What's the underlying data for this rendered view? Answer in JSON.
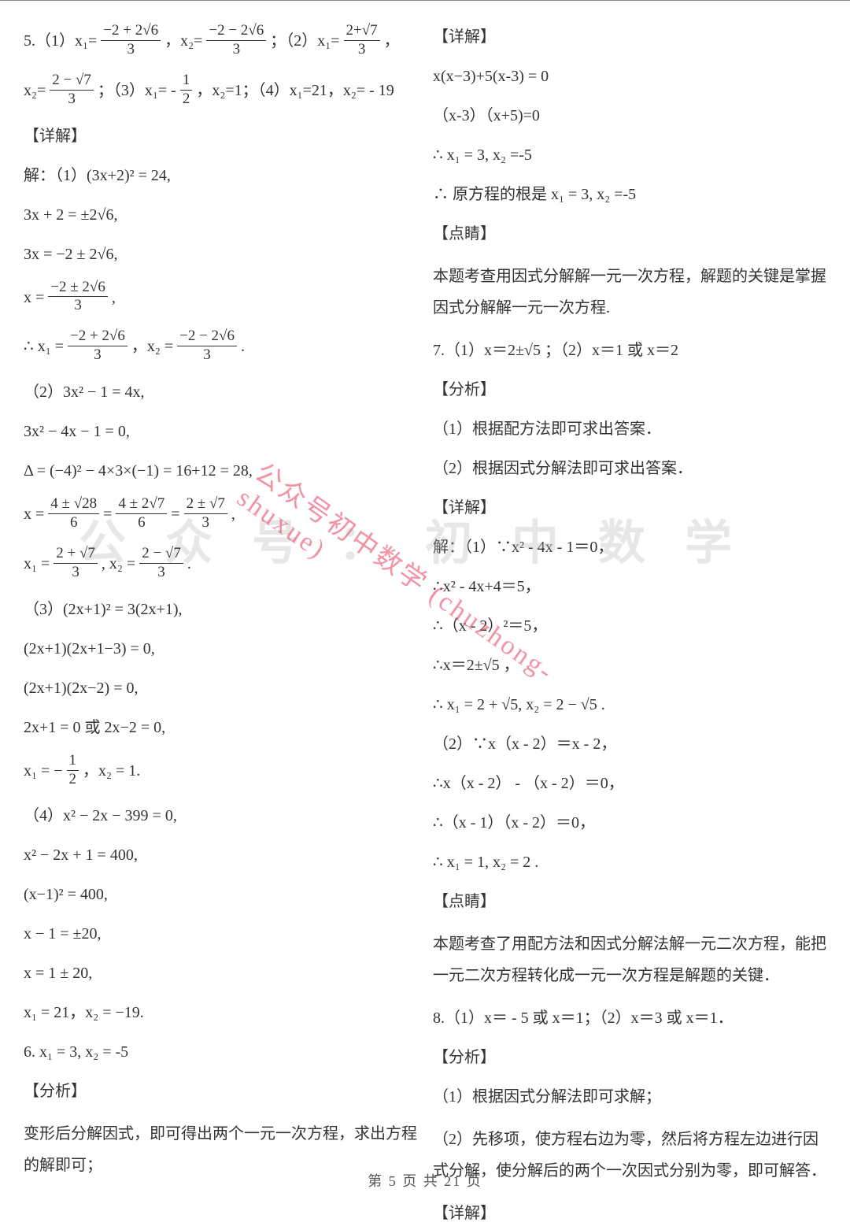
{
  "footer": "第 5 页 共 21 页",
  "watermark_diag": "公众号初中数学 (chuzhong-shuxue)",
  "watermark_horiz": "公众号：初中数学",
  "left": {
    "l1a": "5.（1）x₁=",
    "l1b": "，x₂= ",
    "l1c": "；（2）x₁= ",
    "l1d": "，",
    "l2a": "x₂=",
    "l2b": "；（3）x₁= - ",
    "l2c": "，x₂=1；（4）x₁=21，x₂= - 19",
    "l3": "【详解】",
    "l4": "解：（1）(3x+2)² = 24,",
    "l5": "3x + 2 = ±2√6,",
    "l6": "3x = −2 ± 2√6,",
    "l7a": "x = ",
    "l7b": " ,",
    "l8a": "∴ x₁ = ",
    "l8b": "，x₂ = ",
    "l8c": ".",
    "l9": "（2）3x² − 1 = 4x,",
    "l10": "3x² − 4x − 1 = 0,",
    "l11": "Δ = (−4)² − 4×3×(−1) = 16+12 = 28,",
    "l12a": "x = ",
    "l12b": " = ",
    "l12c": " = ",
    "l12d": " ,",
    "l13a": "x₁ = ",
    "l13b": ", x₂ = ",
    "l13c": ".",
    "l14": "（3）(2x+1)² = 3(2x+1),",
    "l15": "(2x+1)(2x+1−3) = 0,",
    "l16": "(2x+1)(2x−2) = 0,",
    "l17": "2x+1 = 0 或 2x−2 = 0,",
    "l18a": "x₁ = − ",
    "l18b": "，x₂ = 1.",
    "l19": "（4）x² − 2x − 399 = 0,",
    "l20": "x² − 2x + 1 = 400,",
    "l21": "(x−1)² = 400,",
    "l22": "x − 1 = ±20,",
    "l23": "x = 1 ± 20,",
    "l24": "x₁ = 21，x₂ = −19.",
    "l25": "6.  x₁ = 3,  x₂ = -5",
    "l26": "【分析】",
    "l27": "变形后分解因式，即可得出两个一元一次方程，求出方程的解即可；",
    "frac1": {
      "num": "−2 + 2√6",
      "den": "3"
    },
    "frac2": {
      "num": "−2 − 2√6",
      "den": "3"
    },
    "frac3": {
      "num": "2+√7",
      "den": "3"
    },
    "frac4": {
      "num": "2 − √7",
      "den": "3"
    },
    "frac5": {
      "num": "1",
      "den": "2"
    },
    "frac6": {
      "num": "−2 ± 2√6",
      "den": "3"
    },
    "frac7": {
      "num": "−2 + 2√6",
      "den": "3"
    },
    "frac8": {
      "num": "−2 − 2√6",
      "den": "3"
    },
    "frac9": {
      "num": "4 ± √28",
      "den": "6"
    },
    "frac10": {
      "num": "4 ± 2√7",
      "den": "6"
    },
    "frac11": {
      "num": "2 ± √7",
      "den": "3"
    },
    "frac12": {
      "num": "2 + √7",
      "den": "3"
    },
    "frac13": {
      "num": "2 − √7",
      "den": "3"
    },
    "frac14": {
      "num": "1",
      "den": "2"
    }
  },
  "right": {
    "r1": "【详解】",
    "r2": "x(x−3)+5(x-3) = 0",
    "r3": "（x-3）（x+5)=0",
    "r4": "∴ x₁ = 3,  x₂ =-5",
    "r5": "∴ 原方程的根是 x₁ = 3,  x₂ =-5",
    "r6": "【点睛】",
    "r7": "本题考查用因式分解解一元一次方程，解题的关键是掌握因式分解解一元一次方程.",
    "r8": "7.（1）x＝2±√5 ；（2）x＝1 或 x＝2",
    "r9": "【分析】",
    "r10": "（1）根据配方法即可求出答案．",
    "r11": "（2）根据因式分解法即可求出答案．",
    "r12": "【详解】",
    "r13": "解：（1）∵x² - 4x - 1＝0，",
    "r14": "∴x² - 4x+4＝5，",
    "r15": "∴（x - 2）²＝5，",
    "r16": "∴x＝2±√5 ，",
    "r17": "∴ x₁ = 2 + √5, x₂ = 2 − √5 .",
    "r18": "（2）∵x（x - 2）＝x - 2，",
    "r19": "∴x（x - 2） - （x - 2）＝0，",
    "r20": "∴（x - 1）（x - 2）＝0，",
    "r21": "∴ x₁ = 1, x₂ = 2 .",
    "r22": "【点睛】",
    "r23": "本题考查了用配方法和因式分解法解一元二次方程，能把一元二次方程转化成一元一次方程是解题的关键．",
    "r24": "8.（1）x＝ - 5 或 x＝1；（2）x＝3 或 x＝1．",
    "r25": "【分析】",
    "r26": "（1）根据因式分解法即可求解；",
    "r27": "（2）先移项，使方程右边为零，然后将方程左边进行因式分解，使分解后的两个一次因式分别为零，即可解答．",
    "r28": "【详解】"
  }
}
